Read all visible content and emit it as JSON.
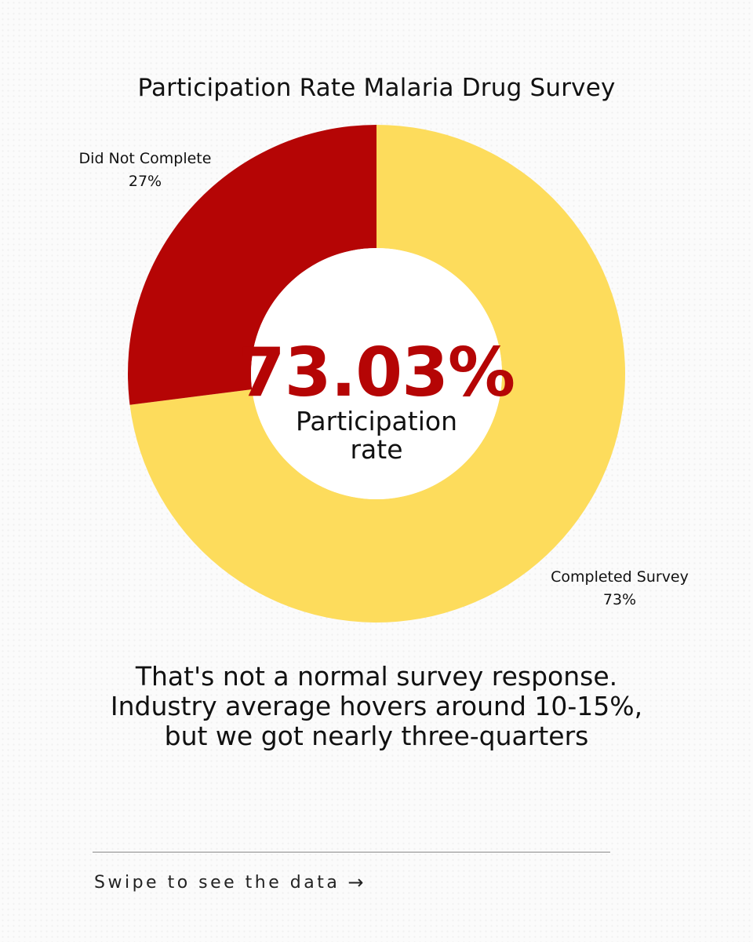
{
  "chart_data": {
    "type": "pie",
    "title": "Participation Rate Malaria Drug Survey",
    "categories": [
      "Completed Survey",
      "Did Not Complete"
    ],
    "values": [
      73,
      27
    ],
    "value_labels": [
      "73%",
      "27%"
    ],
    "colors": [
      "#fddc5c",
      "#b50505"
    ],
    "donut": true,
    "center_value": "73.03%",
    "center_caption_line1": "Participation",
    "center_caption_line2": "rate"
  },
  "takeaway": {
    "line1": "That's not a normal survey response.",
    "line2": "Industry average hovers around 10-15%,",
    "line3": "but we got nearly three-quarters"
  },
  "footer": {
    "swipe_text": "Swipe to see the data",
    "arrow_icon": "arrow-right-icon",
    "arrow_glyph": "→"
  }
}
